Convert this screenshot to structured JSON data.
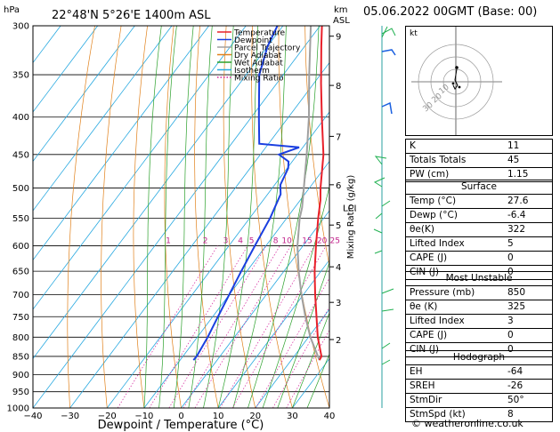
{
  "header": {
    "location": "22°48'N  5°26'E  1400m  ASL",
    "hpa_label": "hPa",
    "km_label": "km",
    "asl_label": "ASL",
    "date": "05.06.2022  00GMT  (Base: 00)"
  },
  "legend": [
    {
      "label": "Temperature",
      "color": "#e8202a"
    },
    {
      "label": "Dewpoint",
      "color": "#1a3fe0"
    },
    {
      "label": "Parcel Trajectory",
      "color": "#a0a0a0"
    },
    {
      "label": "Dry Adiabat",
      "color": "#e0801a"
    },
    {
      "label": "Wet Adiabat",
      "color": "#2aa02a"
    },
    {
      "label": "Isotherm",
      "color": "#26a8e0"
    },
    {
      "label": "Mixing Ratio",
      "color": "#d4209a"
    }
  ],
  "chart_data": {
    "type": "line",
    "xlabel": "Dewpoint / Temperature (°C)",
    "ylabel_right": "Mixing Ratio (g/kg)",
    "pressure_ticks": [
      300,
      350,
      400,
      450,
      500,
      550,
      600,
      650,
      700,
      750,
      800,
      850,
      900,
      950,
      1000
    ],
    "temp_ticks": [
      -40,
      -30,
      -20,
      -10,
      0,
      10,
      20,
      30,
      40
    ],
    "xlim": [
      -40,
      40
    ],
    "ylim": [
      1000,
      300
    ],
    "km_ticks": [
      {
        "label": "9",
        "p": 310
      },
      {
        "label": "8",
        "p": 362
      },
      {
        "label": "7",
        "p": 425
      },
      {
        "label": "6",
        "p": 495
      },
      {
        "label": "5",
        "p": 562
      },
      {
        "label": "4",
        "p": 641
      },
      {
        "label": "3",
        "p": 717
      },
      {
        "label": "2",
        "p": 806
      }
    ],
    "lcl": {
      "label": "LCL",
      "p": 532
    },
    "mixing_ratio_labels": [
      {
        "label": "1",
        "t": -3.5
      },
      {
        "label": "2",
        "t": 6.5
      },
      {
        "label": "3",
        "t": 12.0
      },
      {
        "label": "4",
        "t": 16.0
      },
      {
        "label": "5",
        "t": 19.0
      },
      {
        "label": "8",
        "t": 25.5
      },
      {
        "label": "10",
        "t": 28.5
      },
      {
        "label": "15",
        "t": 34.0
      },
      {
        "label": "20",
        "t": 38.0
      },
      {
        "label": "25",
        "t": 41.5
      }
    ],
    "series": [
      {
        "name": "Temperature",
        "points": [
          [
            860,
            27.6
          ],
          [
            850,
            27.4
          ],
          [
            800,
            22.5
          ],
          [
            750,
            18.0
          ],
          [
            700,
            13.2
          ],
          [
            650,
            8.3
          ],
          [
            600,
            3.5
          ],
          [
            550,
            -1.5
          ],
          [
            520,
            -4.5
          ],
          [
            500,
            -7.0
          ],
          [
            450,
            -13.0
          ],
          [
            400,
            -21.0
          ],
          [
            360,
            -28.0
          ],
          [
            320,
            -35.5
          ],
          [
            300,
            -39.5
          ]
        ]
      },
      {
        "name": "Dewpoint",
        "points": [
          [
            860,
            -6.4
          ],
          [
            850,
            -6.3
          ],
          [
            800,
            -7.2
          ],
          [
            750,
            -8.6
          ],
          [
            700,
            -10.0
          ],
          [
            650,
            -11.5
          ],
          [
            600,
            -13.0
          ],
          [
            550,
            -14.5
          ],
          [
            510,
            -16.5
          ],
          [
            495,
            -18.5
          ],
          [
            470,
            -19.7
          ],
          [
            460,
            -21.0
          ],
          [
            450,
            -25.0
          ],
          [
            440,
            -21.0
          ],
          [
            435,
            -32.5
          ],
          [
            400,
            -38.0
          ],
          [
            350,
            -46.5
          ],
          [
            320,
            -50.0
          ],
          [
            300,
            -51.5
          ]
        ]
      },
      {
        "name": "Parcel Trajectory",
        "points": [
          [
            860,
            27.6
          ],
          [
            800,
            20.5
          ],
          [
            750,
            15.0
          ],
          [
            700,
            9.5
          ],
          [
            650,
            4.0
          ],
          [
            600,
            -1.5
          ],
          [
            550,
            -6.5
          ],
          [
            532,
            -8.0
          ],
          [
            500,
            -11.5
          ],
          [
            450,
            -17.5
          ],
          [
            400,
            -24.5
          ],
          [
            350,
            -33.0
          ],
          [
            300,
            -42.5
          ]
        ]
      }
    ]
  },
  "hodograph": {
    "label": "kt",
    "ring_labels": [
      "10",
      "20",
      "30"
    ]
  },
  "indices": [
    {
      "name": "K",
      "value": "11"
    },
    {
      "name": "Totals Totals",
      "value": "45"
    },
    {
      "name": "PW (cm)",
      "value": "1.15"
    }
  ],
  "surface": {
    "title": "Surface",
    "rows": [
      {
        "name": "Temp (°C)",
        "value": "27.6"
      },
      {
        "name": "Dewp (°C)",
        "value": "-6.4"
      },
      {
        "name": "θe(K)",
        "value": "322"
      },
      {
        "name": "Lifted Index",
        "value": "5"
      },
      {
        "name": "CAPE (J)",
        "value": "0"
      },
      {
        "name": "CIN (J)",
        "value": "0"
      }
    ]
  },
  "most_unstable": {
    "title": "Most Unstable",
    "rows": [
      {
        "name": "Pressure (mb)",
        "value": "850"
      },
      {
        "name": "θe (K)",
        "value": "325"
      },
      {
        "name": "Lifted Index",
        "value": "3"
      },
      {
        "name": "CAPE (J)",
        "value": "0"
      },
      {
        "name": "CIN (J)",
        "value": "0"
      }
    ]
  },
  "hodograph_table": {
    "title": "Hodograph",
    "rows": [
      {
        "name": "EH",
        "value": "-64"
      },
      {
        "name": "SREH",
        "value": "-26"
      },
      {
        "name": "StmDir",
        "value": "50°"
      },
      {
        "name": "StmSpd (kt)",
        "value": "8"
      }
    ]
  },
  "credit": "© weatheronline.co.uk"
}
